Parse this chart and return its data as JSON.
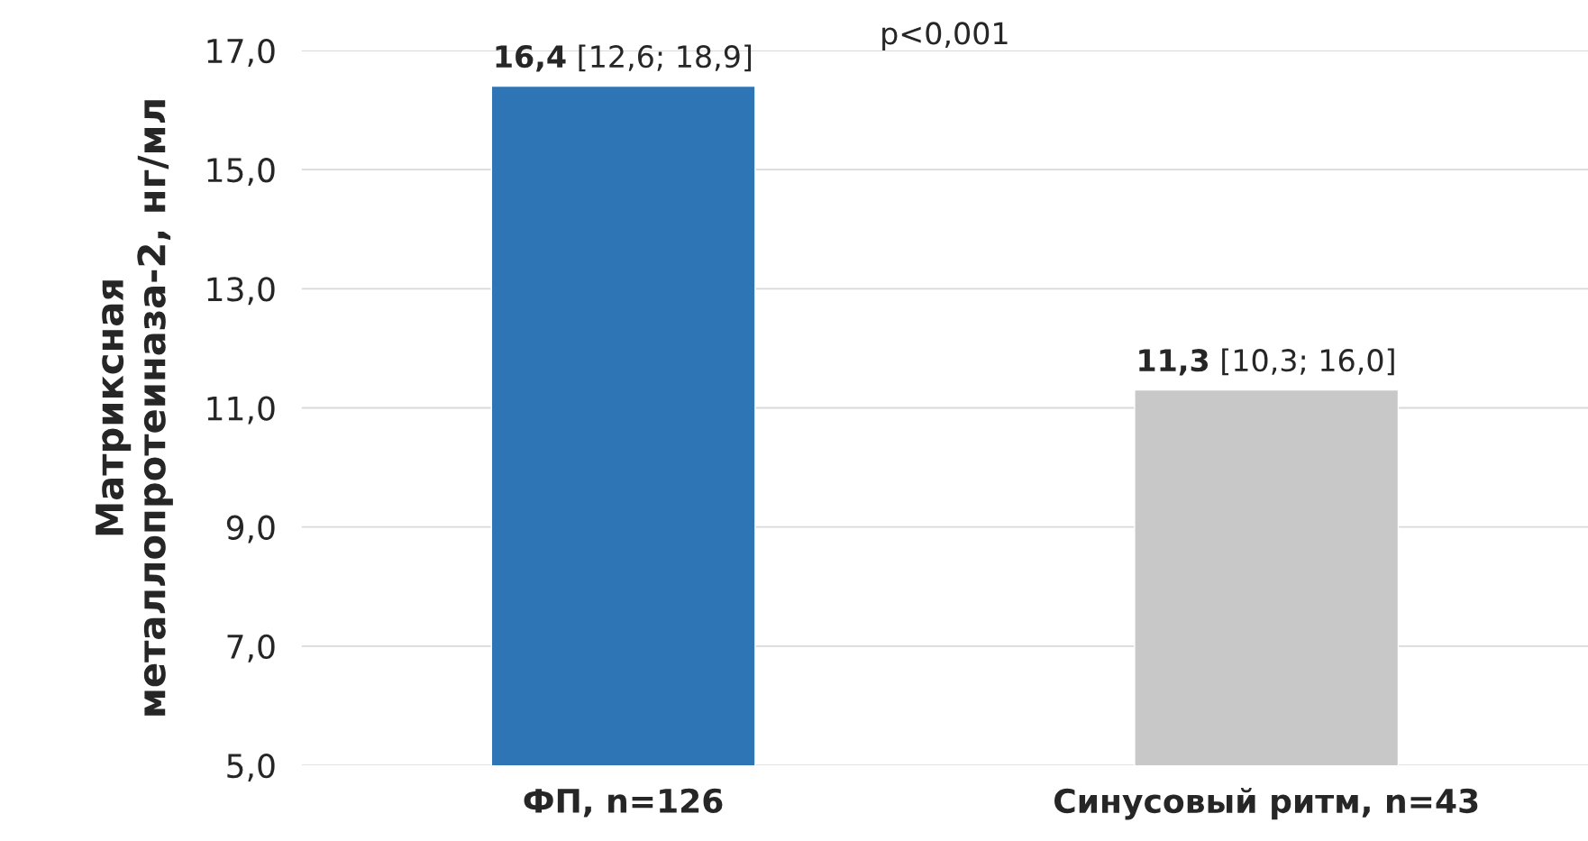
{
  "chart_data": {
    "type": "bar",
    "ylabel": "Матриксная\nметаллопротеиназа-2, нг/мл",
    "categories": [
      "ФП, n=126",
      "Синусовый ритм, n=43"
    ],
    "values": [
      16.4,
      11.3
    ],
    "colors": [
      "#2e75b6",
      "#c8c8c8"
    ],
    "value_labels": [
      "16,4 [12,6; 18,9]",
      "11,3 [10,3; 16,0]"
    ],
    "ylim": [
      5,
      17
    ],
    "yticks": [
      {
        "value": 5,
        "label": "5,0"
      },
      {
        "value": 7,
        "label": "7,0"
      },
      {
        "value": 9,
        "label": "9,0"
      },
      {
        "value": 11,
        "label": "11,0"
      },
      {
        "value": 13,
        "label": "13,0"
      },
      {
        "value": 15,
        "label": "15,0"
      },
      {
        "value": 17,
        "label": "17,0"
      }
    ],
    "grid": "y",
    "annotations": [
      "p<0,001"
    ]
  }
}
